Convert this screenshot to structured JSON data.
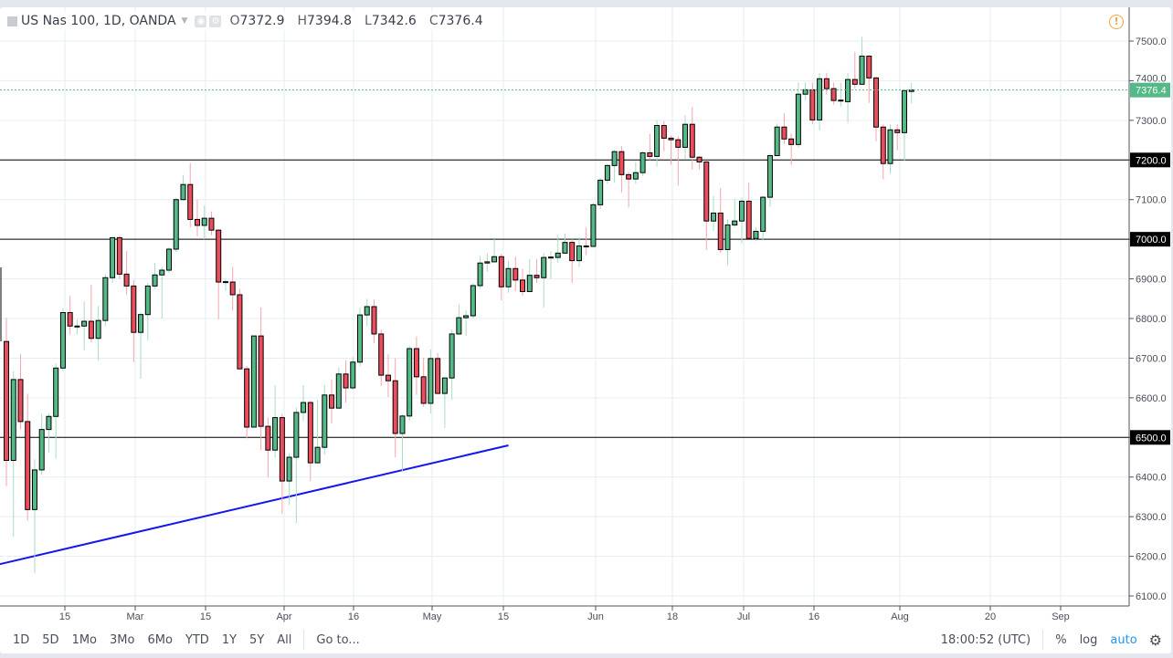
{
  "header": {
    "symbol_title": "US Nas 100, 1D, OANDA",
    "ohlc": [
      {
        "key": "O",
        "value": "7372.9"
      },
      {
        "key": "H",
        "value": "7394.8"
      },
      {
        "key": "L",
        "value": "7342.6"
      },
      {
        "key": "C",
        "value": "7376.4"
      }
    ]
  },
  "toolbar": {
    "ranges": [
      "1D",
      "5D",
      "1Mo",
      "3Mo",
      "6Mo",
      "YTD",
      "1Y",
      "5Y",
      "All"
    ],
    "goto_label": "Go to...",
    "clock": "18:00:52 (UTC)",
    "percent_label": "%",
    "log_label": "log",
    "auto_label": "auto"
  },
  "colors": {
    "up": "#53b987",
    "down": "#eb4d5c",
    "up_wick": "#a9dcc3",
    "down_wick": "#f4a6ad",
    "trendline": "#1515f0",
    "level_line": "#000000",
    "last_price": "#53b987",
    "alert": "#f5a340"
  },
  "chart_data": {
    "type": "candlestick",
    "title": "US Nas 100, 1D, OANDA",
    "ylim": [
      6060,
      7580
    ],
    "y_ticks": [
      6100,
      6200,
      6300,
      6400,
      6500,
      6600,
      6700,
      6800,
      6900,
      7000,
      7100,
      7200,
      7300,
      7400,
      7500
    ],
    "x_tick_labels": [
      "15",
      "Mar",
      "15",
      "Apr",
      "16",
      "May",
      "15",
      "Jun",
      "18",
      "Jul",
      "16",
      "Aug",
      "20",
      "Sep"
    ],
    "last_price": 7376.4,
    "last_price_label": "7376.4",
    "horizontal_levels": [
      {
        "value": 7200,
        "label": "7200.0"
      },
      {
        "value": 7000,
        "label": "7000.0"
      },
      {
        "value": 6500,
        "label": "6500.0"
      }
    ],
    "trendline": {
      "from_index": -1,
      "from_price": 6180,
      "to_index": 71,
      "to_price": 6480
    },
    "candles_ohlc": [
      [
        6742,
        6802,
        6377,
        6442
      ],
      [
        6442,
        6667,
        6250,
        6646
      ],
      [
        6646,
        6710,
        6520,
        6540
      ],
      [
        6540,
        6610,
        6290,
        6318
      ],
      [
        6318,
        6445,
        6158,
        6418
      ],
      [
        6418,
        6560,
        6405,
        6520
      ],
      [
        6520,
        6560,
        6462,
        6553
      ],
      [
        6553,
        6687,
        6447,
        6675
      ],
      [
        6675,
        6825,
        6667,
        6815
      ],
      [
        6815,
        6857,
        6760,
        6781
      ],
      [
        6780,
        6798,
        6760,
        6781
      ],
      [
        6781,
        6843,
        6720,
        6793
      ],
      [
        6793,
        6885,
        6740,
        6750
      ],
      [
        6750,
        6832,
        6694,
        6795
      ],
      [
        6795,
        6912,
        6781,
        6903
      ],
      [
        6903,
        7005,
        6890,
        7004
      ],
      [
        7004,
        7008,
        6900,
        6912
      ],
      [
        6912,
        6970,
        6860,
        6882
      ],
      [
        6882,
        6897,
        6690,
        6765
      ],
      [
        6765,
        6815,
        6648,
        6810
      ],
      [
        6810,
        6890,
        6745,
        6882
      ],
      [
        6882,
        6940,
        6875,
        6910
      ],
      [
        6910,
        6930,
        6800,
        6922
      ],
      [
        6922,
        6980,
        6915,
        6975
      ],
      [
        6975,
        7105,
        6968,
        7100
      ],
      [
        7100,
        7162,
        7098,
        7138
      ],
      [
        7138,
        7192,
        7030,
        7050
      ],
      [
        7050,
        7100,
        7008,
        7035
      ],
      [
        7035,
        7085,
        7000,
        7053
      ],
      [
        7053,
        7070,
        7010,
        7023
      ],
      [
        7023,
        7025,
        6798,
        6892
      ],
      [
        6892,
        6898,
        6870,
        6893
      ],
      [
        6892,
        6930,
        6820,
        6860
      ],
      [
        6860,
        6875,
        6673,
        6673
      ],
      [
        6673,
        6680,
        6497,
        6526
      ],
      [
        6526,
        6756,
        6526,
        6756
      ],
      [
        6756,
        6828,
        6468,
        6528
      ],
      [
        6528,
        6550,
        6400,
        6468
      ],
      [
        6468,
        6632,
        6450,
        6550
      ],
      [
        6550,
        6560,
        6307,
        6390
      ],
      [
        6390,
        6460,
        6330,
        6450
      ],
      [
        6450,
        6575,
        6284,
        6563
      ],
      [
        6563,
        6632,
        6542,
        6588
      ],
      [
        6588,
        6592,
        6390,
        6436
      ],
      [
        6436,
        6595,
        6436,
        6475
      ],
      [
        6475,
        6632,
        6457,
        6607
      ],
      [
        6607,
        6646,
        6535,
        6574
      ],
      [
        6574,
        6676,
        6574,
        6660
      ],
      [
        6660,
        6694,
        6588,
        6625
      ],
      [
        6625,
        6703,
        6620,
        6690
      ],
      [
        6690,
        6828,
        6680,
        6809
      ],
      [
        6809,
        6850,
        6780,
        6830
      ],
      [
        6830,
        6848,
        6738,
        6761
      ],
      [
        6761,
        6772,
        6630,
        6657
      ],
      [
        6657,
        6710,
        6602,
        6643
      ],
      [
        6643,
        6700,
        6450,
        6510
      ],
      [
        6510,
        6558,
        6413,
        6554
      ],
      [
        6554,
        6731,
        6542,
        6724
      ],
      [
        6724,
        6754,
        6607,
        6653
      ],
      [
        6653,
        6701,
        6577,
        6586
      ],
      [
        6586,
        6722,
        6561,
        6699
      ],
      [
        6699,
        6713,
        6611,
        6611
      ],
      [
        6611,
        6650,
        6524,
        6650
      ],
      [
        6650,
        6772,
        6595,
        6761
      ],
      [
        6761,
        6835,
        6761,
        6802
      ],
      [
        6802,
        6821,
        6756,
        6807
      ],
      [
        6807,
        6890,
        6800,
        6883
      ],
      [
        6883,
        6958,
        6875,
        6940
      ],
      [
        6940,
        6965,
        6918,
        6943
      ],
      [
        6943,
        7000,
        6943,
        6956
      ],
      [
        6956,
        6963,
        6846,
        6880
      ],
      [
        6880,
        6945,
        6865,
        6926
      ],
      [
        6926,
        6956,
        6869,
        6897
      ],
      [
        6897,
        6925,
        6857,
        6868
      ],
      [
        6868,
        6950,
        6868,
        6909
      ],
      [
        6909,
        6950,
        6890,
        6903
      ],
      [
        6903,
        6965,
        6828,
        6954
      ],
      [
        6954,
        6970,
        6900,
        6955
      ],
      [
        6954,
        7010,
        6940,
        6965
      ],
      [
        6965,
        7015,
        6965,
        6992
      ],
      [
        6992,
        7000,
        6890,
        6946
      ],
      [
        6946,
        7005,
        6930,
        6983
      ],
      [
        6983,
        7030,
        6960,
        6982
      ],
      [
        6982,
        7092,
        6982,
        7087
      ],
      [
        7087,
        7155,
        7076,
        7149
      ],
      [
        7149,
        7190,
        7140,
        7186
      ],
      [
        7186,
        7225,
        7143,
        7221
      ],
      [
        7221,
        7235,
        7118,
        7163
      ],
      [
        7163,
        7170,
        7080,
        7152
      ],
      [
        7152,
        7195,
        7140,
        7168
      ],
      [
        7168,
        7222,
        7160,
        7218
      ],
      [
        7218,
        7266,
        7200,
        7209
      ],
      [
        7209,
        7300,
        7183,
        7287
      ],
      [
        7287,
        7298,
        7222,
        7255
      ],
      [
        7255,
        7262,
        7188,
        7251
      ],
      [
        7251,
        7260,
        7135,
        7232
      ],
      [
        7232,
        7313,
        7203,
        7290
      ],
      [
        7290,
        7334,
        7176,
        7207
      ],
      [
        7207,
        7210,
        7176,
        7195
      ],
      [
        7195,
        7197,
        6973,
        7046
      ],
      [
        7046,
        7109,
        7021,
        7066
      ],
      [
        7066,
        7129,
        6966,
        6974
      ],
      [
        6974,
        7050,
        6934,
        7036
      ],
      [
        7036,
        7101,
        7030,
        7046
      ],
      [
        7046,
        7105,
        6990,
        7096
      ],
      [
        7096,
        7143,
        7002,
        7002
      ],
      [
        7002,
        7030,
        6995,
        7020
      ],
      [
        7020,
        7110,
        6998,
        7106
      ],
      [
        7106,
        7216,
        7082,
        7211
      ],
      [
        7211,
        7292,
        7211,
        7283
      ],
      [
        7283,
        7318,
        7240,
        7253
      ],
      [
        7253,
        7266,
        7188,
        7239
      ],
      [
        7239,
        7396,
        7231,
        7366
      ],
      [
        7366,
        7396,
        7350,
        7377
      ],
      [
        7377,
        7396,
        7290,
        7301
      ],
      [
        7301,
        7420,
        7275,
        7405
      ],
      [
        7405,
        7420,
        7365,
        7380
      ],
      [
        7380,
        7395,
        7340,
        7350
      ],
      [
        7350,
        7395,
        7335,
        7351
      ],
      [
        7347,
        7420,
        7294,
        7403
      ],
      [
        7403,
        7473,
        7380,
        7391
      ],
      [
        7391,
        7511,
        7391,
        7462
      ],
      [
        7462,
        7465,
        7344,
        7407
      ],
      [
        7407,
        7410,
        7247,
        7283
      ],
      [
        7283,
        7290,
        7151,
        7191
      ],
      [
        7191,
        7290,
        7165,
        7276
      ],
      [
        7276,
        7290,
        7224,
        7269
      ],
      [
        7269,
        7376,
        7199,
        7375
      ],
      [
        7372.9,
        7394.8,
        7342.6,
        7376.4
      ]
    ]
  }
}
